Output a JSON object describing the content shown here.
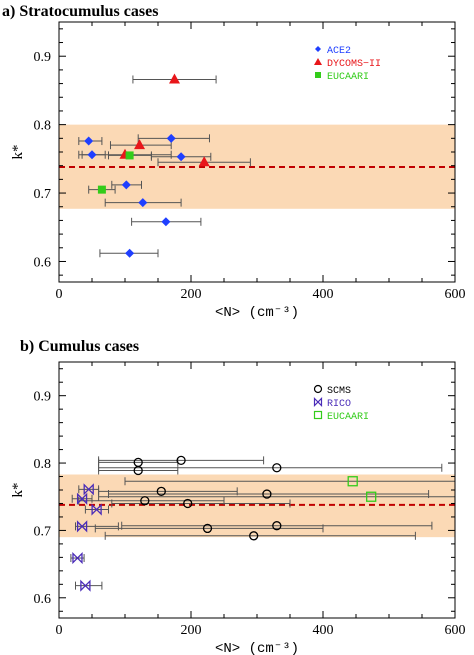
{
  "chart_data": [
    {
      "type": "scatter",
      "title": "a) Stratocumulus cases",
      "xlabel": "<N> (cm⁻³)",
      "ylabel": "k*",
      "xlim": [
        0,
        600
      ],
      "ylim": [
        0.57,
        0.95
      ],
      "xticks": [
        0,
        200,
        400,
        600
      ],
      "yticks": [
        0.6,
        0.7,
        0.8,
        0.9
      ],
      "band": {
        "y0": 0.677,
        "y1": 0.8,
        "color": "#fbd9b5"
      },
      "mean_line": {
        "y": 0.738,
        "color": "#c00000"
      },
      "legend_position": "top-right",
      "series": [
        {
          "name": "ACE2",
          "color": "#1f3fff",
          "marker": "diamond",
          "points": [
            {
              "x": 45,
              "y": 0.776,
              "xerr": [
                30,
                65
              ]
            },
            {
              "x": 50,
              "y": 0.756,
              "xerr": [
                35,
                70
              ]
            },
            {
              "x": 170,
              "y": 0.78,
              "xerr": [
                120,
                228
              ]
            },
            {
              "x": 185,
              "y": 0.753,
              "xerr": [
                140,
                230
              ]
            },
            {
              "x": 102,
              "y": 0.712,
              "xerr": [
                80,
                125
              ]
            },
            {
              "x": 127,
              "y": 0.686,
              "xerr": [
                70,
                185
              ]
            },
            {
              "x": 162,
              "y": 0.658,
              "xerr": [
                110,
                215
              ]
            },
            {
              "x": 107,
              "y": 0.612,
              "xerr": [
                62,
                150
              ]
            }
          ]
        },
        {
          "name": "DYCOMS−II",
          "color": "#e8161a",
          "marker": "triangle",
          "points": [
            {
              "x": 175,
              "y": 0.866,
              "xerr": [
                112,
                238
              ]
            },
            {
              "x": 122,
              "y": 0.77,
              "xerr": [
                78,
                170
              ]
            },
            {
              "x": 100,
              "y": 0.756,
              "xerr": [
                30,
                170
              ]
            },
            {
              "x": 220,
              "y": 0.745,
              "xerr": [
                150,
                290
              ]
            }
          ]
        },
        {
          "name": "EUCAARI",
          "color": "#33cc1a",
          "marker": "square",
          "points": [
            {
              "x": 107,
              "y": 0.755,
              "xerr": [
                75,
                140
              ]
            },
            {
              "x": 65,
              "y": 0.705,
              "xerr": [
                45,
                85
              ]
            }
          ]
        }
      ]
    },
    {
      "type": "scatter",
      "title": "b) Cumulus cases",
      "xlabel": "<N> (cm⁻³)",
      "ylabel": "k*",
      "xlim": [
        0,
        600
      ],
      "ylim": [
        0.57,
        0.95
      ],
      "xticks": [
        0,
        200,
        400,
        600
      ],
      "yticks": [
        0.6,
        0.7,
        0.8,
        0.9
      ],
      "band": {
        "y0": 0.69,
        "y1": 0.783,
        "color": "#fbd9b5"
      },
      "mean_line": {
        "y": 0.738,
        "color": "#c00000"
      },
      "legend_position": "top-right",
      "series": [
        {
          "name": "SCMS",
          "color": "#000000",
          "marker": "circle",
          "points": [
            {
              "x": 120,
              "y": 0.801,
              "xerr": [
                60,
                180
              ]
            },
            {
              "x": 185,
              "y": 0.804,
              "xerr": [
                60,
                310
              ]
            },
            {
              "x": 120,
              "y": 0.789,
              "xerr": [
                60,
                180
              ]
            },
            {
              "x": 330,
              "y": 0.793,
              "xerr": [
                60,
                580
              ]
            },
            {
              "x": 155,
              "y": 0.758,
              "xerr": [
                60,
                270
              ]
            },
            {
              "x": 315,
              "y": 0.754,
              "xerr": [
                75,
                560
              ]
            },
            {
              "x": 130,
              "y": 0.744,
              "xerr": [
                30,
                250
              ]
            },
            {
              "x": 195,
              "y": 0.74,
              "xerr": [
                80,
                350
              ]
            },
            {
              "x": 225,
              "y": 0.703,
              "xerr": [
                55,
                400
              ]
            },
            {
              "x": 330,
              "y": 0.707,
              "xerr": [
                95,
                565
              ]
            },
            {
              "x": 295,
              "y": 0.692,
              "xerr": [
                70,
                540
              ]
            }
          ]
        },
        {
          "name": "RICO",
          "color": "#4a2cb8",
          "marker": "bowtie",
          "points": [
            {
              "x": 45,
              "y": 0.761,
              "xerr": [
                30,
                60
              ]
            },
            {
              "x": 35,
              "y": 0.747,
              "xerr": [
                20,
                50
              ]
            },
            {
              "x": 57,
              "y": 0.731,
              "xerr": [
                40,
                75
              ]
            },
            {
              "x": 35,
              "y": 0.706,
              "xerr": [
                25,
                90
              ]
            },
            {
              "x": 28,
              "y": 0.659,
              "xerr": [
                18,
                38
              ]
            },
            {
              "x": 40,
              "y": 0.618,
              "xerr": [
                25,
                65
              ]
            }
          ]
        },
        {
          "name": "EUCAARI",
          "color": "#33cc1a",
          "marker": "open-square",
          "points": [
            {
              "x": 445,
              "y": 0.773,
              "xerr": [
                100,
                600
              ]
            },
            {
              "x": 473,
              "y": 0.75,
              "xerr": [
                60,
                600
              ]
            }
          ]
        }
      ]
    }
  ]
}
